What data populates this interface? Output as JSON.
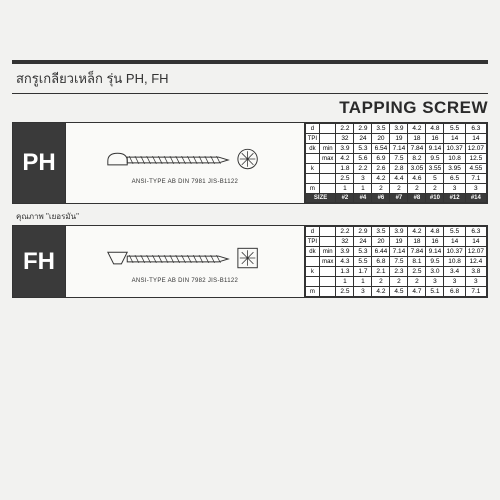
{
  "header": {
    "thai_title": "สกรูเกลียวเหล็ก รุ่น PH, FH",
    "english_title": "TAPPING SCREW"
  },
  "quality_note": "คุณภาพ \"เยอรมัน\"",
  "blocks": [
    {
      "label": "PH",
      "caption": "ANSI-TYPE AB DIN 7981 JIS-B1122",
      "head_type": "pan",
      "rows": [
        {
          "h1": "d",
          "h2": "",
          "vals": [
            "2.2",
            "2.9",
            "3.5",
            "3.9",
            "4.2",
            "4.8",
            "5.5",
            "6.3"
          ]
        },
        {
          "h1": "TPI",
          "h2": "",
          "vals": [
            "32",
            "24",
            "20",
            "19",
            "18",
            "16",
            "14",
            "14"
          ]
        },
        {
          "h1": "dk",
          "h2": "min",
          "vals": [
            "3.9",
            "5.3",
            "6.54",
            "7.14",
            "7.84",
            "9.14",
            "10.37",
            "12.07"
          ]
        },
        {
          "h1": "",
          "h2": "max",
          "vals": [
            "4.2",
            "5.6",
            "6.9",
            "7.5",
            "8.2",
            "9.5",
            "10.8",
            "12.5"
          ]
        },
        {
          "h1": "k",
          "h2": "",
          "vals": [
            "1.8",
            "2.2",
            "2.6",
            "2.8",
            "3.05",
            "3.55",
            "3.95",
            "4.55"
          ]
        },
        {
          "h1": "",
          "h2": "",
          "vals": [
            "2.5",
            "3",
            "4.2",
            "4.4",
            "4.6",
            "5",
            "6.5",
            "7.1"
          ]
        },
        {
          "h1": "m",
          "h2": "",
          "vals": [
            "1",
            "1",
            "2",
            "2",
            "2",
            "2",
            "3",
            "3"
          ]
        }
      ],
      "size_row": {
        "label": "SIZE",
        "vals": [
          "#2",
          "#4",
          "#6",
          "#7",
          "#8",
          "#10",
          "#12",
          "#14"
        ]
      }
    },
    {
      "label": "FH",
      "caption": "ANSI-TYPE AB DIN 7982 JIS-B1122",
      "head_type": "flat",
      "rows": [
        {
          "h1": "d",
          "h2": "",
          "vals": [
            "2.2",
            "2.9",
            "3.5",
            "3.9",
            "4.2",
            "4.8",
            "5.5",
            "6.3"
          ]
        },
        {
          "h1": "TPI",
          "h2": "",
          "vals": [
            "32",
            "24",
            "20",
            "19",
            "18",
            "16",
            "14",
            "14"
          ]
        },
        {
          "h1": "dk",
          "h2": "min",
          "vals": [
            "3.9",
            "5.3",
            "6.44",
            "7.14",
            "7.84",
            "9.14",
            "10.37",
            "12.07"
          ]
        },
        {
          "h1": "",
          "h2": "max",
          "vals": [
            "4.3",
            "5.5",
            "6.8",
            "7.5",
            "8.1",
            "9.5",
            "10.8",
            "12.4"
          ]
        },
        {
          "h1": "k",
          "h2": "",
          "vals": [
            "1.3",
            "1.7",
            "2.1",
            "2.3",
            "2.5",
            "3.0",
            "3.4",
            "3.8"
          ]
        },
        {
          "h1": "",
          "h2": "",
          "vals": [
            "1",
            "1",
            "2",
            "2",
            "2",
            "3",
            "3",
            "3"
          ]
        },
        {
          "h1": "m",
          "h2": "",
          "vals": [
            "2.5",
            "3",
            "4.2",
            "4.5",
            "4.7",
            "5.1",
            "6.8",
            "7.1"
          ]
        }
      ],
      "size_row": null
    }
  ],
  "colors": {
    "dark": "#3a3a3a",
    "bg": "#f2f2f0",
    "line": "#333333"
  }
}
